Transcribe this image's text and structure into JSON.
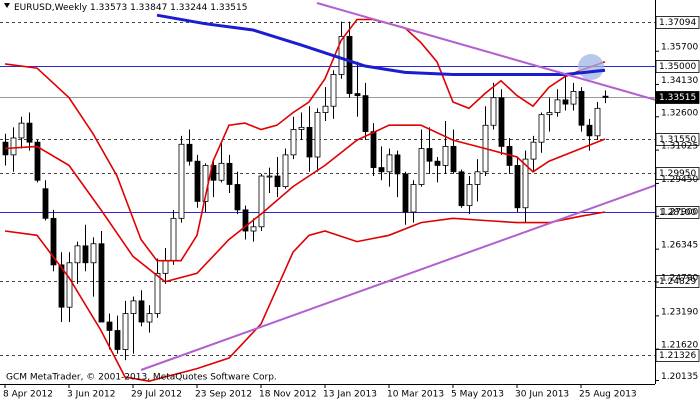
{
  "chart_data": {
    "type": "candlestick",
    "title": "EURUSD,Weekly",
    "watermark": "GCM MetaTrader, © 2001-2013, MetaQuotes Software Corp.",
    "categories": [
      "8 Apr 2012",
      null,
      null,
      null,
      null,
      null,
      null,
      null,
      "3 Jun 2012",
      null,
      null,
      null,
      null,
      null,
      null,
      null,
      "29 Jul 2012",
      null,
      null,
      null,
      null,
      null,
      null,
      null,
      "23 Sep 2012",
      null,
      null,
      null,
      null,
      null,
      null,
      null,
      "18 Nov 2012",
      null,
      null,
      null,
      null,
      null,
      null,
      null,
      "13 Jan 2013",
      null,
      null,
      null,
      null,
      null,
      null,
      null,
      "10 Mar 2013",
      null,
      null,
      null,
      null,
      null,
      null,
      null,
      "5 May 2013",
      null,
      null,
      null,
      null,
      null,
      null,
      null,
      "30 Jun 2013",
      null,
      null,
      null,
      null,
      null,
      null,
      null,
      "25 Aug 2013",
      null,
      null,
      null
    ],
    "open": [
      1.314,
      1.308,
      1.316,
      1.323,
      1.314,
      1.292,
      1.278,
      1.256,
      1.236,
      1.257,
      1.265,
      1.257,
      1.266,
      1.229,
      1.225,
      1.216,
      1.233,
      1.239,
      1.229,
      1.233,
      1.252,
      1.258,
      1.278,
      1.313,
      1.305,
      1.286,
      1.303,
      1.296,
      1.304,
      1.294,
      1.282,
      1.272,
      1.274,
      1.298,
      1.298,
      1.293,
      1.308,
      1.32,
      1.321,
      1.307,
      1.328,
      1.331,
      1.346,
      1.364,
      1.337,
      1.336,
      1.319,
      1.302,
      1.3,
      1.308,
      1.299,
      1.281,
      1.294,
      1.311,
      1.305,
      1.303,
      1.312,
      1.3,
      1.284,
      1.294,
      1.3,
      1.322,
      1.335,
      1.312,
      1.303,
      1.283,
      1.306,
      1.314,
      1.327,
      1.328,
      1.334,
      1.332,
      1.338,
      1.322,
      1.317,
      1.33573
    ],
    "high": [
      1.318,
      1.321,
      1.326,
      1.328,
      1.315,
      1.296,
      1.282,
      1.262,
      1.262,
      1.267,
      1.275,
      1.269,
      1.272,
      1.233,
      1.232,
      1.239,
      1.241,
      1.244,
      1.237,
      1.259,
      1.264,
      1.282,
      1.317,
      1.32,
      1.308,
      1.304,
      1.306,
      1.314,
      1.308,
      1.3,
      1.284,
      1.278,
      1.299,
      1.302,
      1.307,
      1.311,
      1.326,
      1.328,
      1.331,
      1.33,
      1.34,
      1.348,
      1.371,
      1.371,
      1.352,
      1.342,
      1.323,
      1.312,
      1.311,
      1.31,
      1.3,
      1.296,
      1.32,
      1.321,
      1.307,
      1.324,
      1.32,
      1.301,
      1.298,
      1.306,
      1.331,
      1.342,
      1.339,
      1.316,
      1.307,
      1.31,
      1.317,
      1.328,
      1.335,
      1.339,
      1.345,
      1.342,
      1.34,
      1.325,
      1.333,
      1.33847
    ],
    "low": [
      1.303,
      1.3,
      1.311,
      1.31,
      1.295,
      1.277,
      1.253,
      1.229,
      1.229,
      1.247,
      1.253,
      1.241,
      1.229,
      1.216,
      1.214,
      1.211,
      1.214,
      1.227,
      1.224,
      1.231,
      1.247,
      1.256,
      1.276,
      1.303,
      1.283,
      1.281,
      1.288,
      1.295,
      1.29,
      1.28,
      1.268,
      1.267,
      1.272,
      1.29,
      1.288,
      1.292,
      1.306,
      1.315,
      1.3,
      1.3,
      1.324,
      1.325,
      1.344,
      1.335,
      1.326,
      1.315,
      1.298,
      1.296,
      1.293,
      1.288,
      1.275,
      1.276,
      1.293,
      1.299,
      1.295,
      1.299,
      1.299,
      1.283,
      1.28,
      1.286,
      1.298,
      1.32,
      1.308,
      1.299,
      1.281,
      1.276,
      1.3,
      1.309,
      1.319,
      1.326,
      1.329,
      1.329,
      1.319,
      1.31,
      1.315,
      1.33244
    ],
    "close": [
      1.308,
      1.316,
      1.323,
      1.314,
      1.296,
      1.278,
      1.256,
      1.236,
      1.257,
      1.265,
      1.257,
      1.266,
      1.229,
      1.225,
      1.216,
      1.233,
      1.239,
      1.229,
      1.233,
      1.252,
      1.258,
      1.278,
      1.313,
      1.305,
      1.286,
      1.303,
      1.296,
      1.304,
      1.294,
      1.282,
      1.272,
      1.274,
      1.298,
      1.298,
      1.293,
      1.308,
      1.32,
      1.321,
      1.307,
      1.328,
      1.331,
      1.346,
      1.364,
      1.337,
      1.336,
      1.319,
      1.302,
      1.3,
      1.308,
      1.299,
      1.281,
      1.294,
      1.311,
      1.305,
      1.303,
      1.312,
      1.3,
      1.284,
      1.294,
      1.3,
      1.322,
      1.335,
      1.312,
      1.303,
      1.283,
      1.306,
      1.314,
      1.327,
      1.328,
      1.334,
      1.332,
      1.338,
      1.322,
      1.317,
      1.33,
      1.33515
    ],
    "up_color": "#ffffff",
    "down_color": "#000000",
    "outline_color": "#000000",
    "lines": [
      {
        "color": "#e00000",
        "width": 1.6,
        "x": [
          0,
          4,
          8,
          11,
          14,
          17,
          19,
          22,
          24,
          26,
          28,
          30,
          32,
          34,
          36,
          38,
          40,
          42,
          44,
          46,
          48,
          50,
          52,
          54,
          56,
          58,
          60,
          62,
          64,
          66,
          68,
          70,
          72,
          75
        ],
        "values": [
          1.351,
          1.349,
          1.335,
          1.318,
          1.298,
          1.268,
          1.258,
          1.258,
          1.27,
          1.305,
          1.322,
          1.323,
          1.32,
          1.322,
          1.328,
          1.333,
          1.344,
          1.362,
          1.372,
          1.372,
          1.37,
          1.368,
          1.361,
          1.352,
          1.333,
          1.33,
          1.337,
          1.343,
          1.336,
          1.331,
          1.34,
          1.345,
          1.348,
          1.352
        ]
      },
      {
        "color": "#e00000",
        "width": 1.6,
        "x": [
          0,
          4,
          8,
          12,
          16,
          20,
          24,
          28,
          32,
          36,
          40,
          44,
          48,
          52,
          56,
          60,
          64,
          66,
          68,
          72,
          75
        ],
        "values": [
          1.311,
          1.312,
          1.303,
          1.282,
          1.26,
          1.248,
          1.252,
          1.268,
          1.28,
          1.293,
          1.303,
          1.315,
          1.322,
          1.322,
          1.315,
          1.311,
          1.307,
          1.3,
          1.305,
          1.311,
          1.3155
        ]
      },
      {
        "color": "#e00000",
        "width": 1.6,
        "x": [
          0,
          4,
          8,
          12,
          15,
          18,
          20,
          24,
          28,
          32,
          34,
          36,
          38,
          40,
          44,
          48,
          52,
          56,
          60,
          64,
          68,
          72,
          75
        ],
        "values": [
          1.272,
          1.27,
          1.25,
          1.225,
          1.203,
          1.201,
          1.203,
          1.207,
          1.212,
          1.228,
          1.245,
          1.262,
          1.27,
          1.272,
          1.267,
          1.27,
          1.276,
          1.278,
          1.277,
          1.276,
          1.276,
          1.279,
          1.281
        ]
      },
      {
        "color": "#1c1cd0",
        "width": 3,
        "x": [
          19,
          25,
          31,
          37,
          45,
          50,
          56,
          62,
          70,
          75
        ],
        "values": [
          1.374,
          1.37,
          1.367,
          1.36,
          1.35,
          1.347,
          1.346,
          1.346,
          1.346,
          1.348
        ]
      },
      {
        "color": "#b35fd0",
        "width": 2,
        "x": [
          39,
          81.4
        ],
        "values": [
          1.3798,
          1.3339
        ]
      },
      {
        "color": "#b35fd0",
        "width": 2,
        "x": [
          17,
          81.4
        ],
        "values": [
          1.2063,
          1.2938
        ]
      }
    ],
    "levels": [
      {
        "value": 1.37094,
        "style": "dashed"
      },
      {
        "value": 1.35,
        "label": "1.35000",
        "style": "solid",
        "color": "#2a2ad0"
      },
      {
        "value": 1.3155,
        "label": "1.31550",
        "style": "dashed"
      },
      {
        "value": 1.2995,
        "label": "1.29950",
        "style": "dashed"
      },
      {
        "value": 1.281,
        "label": "1.28100",
        "style": "solid",
        "color": "#2a2ad0"
      },
      {
        "value": 1.24829,
        "style": "dashed"
      },
      {
        "value": 1.21326,
        "style": "dashed"
      }
    ],
    "ylim": [
      1.1997,
      1.3812
    ],
    "yticks": [
      {
        "value": 1.357,
        "label": "1.35700"
      },
      {
        "value": 1.3413,
        "label": "1.34130"
      },
      {
        "value": 1.326,
        "label": "1.32600"
      },
      {
        "value": 1.31025,
        "label": "1.31025"
      },
      {
        "value": 1.2945,
        "label": "1.29450"
      },
      {
        "value": 1.279,
        "label": "1.27900"
      },
      {
        "value": 1.26345,
        "label": "1.26345"
      },
      {
        "value": 1.2479,
        "label": "1.24790"
      },
      {
        "value": 1.2319,
        "label": "1.23190"
      },
      {
        "value": 1.2162,
        "label": "1.21620"
      },
      {
        "value": 1.20135,
        "label": "1.20135"
      }
    ]
  }
}
